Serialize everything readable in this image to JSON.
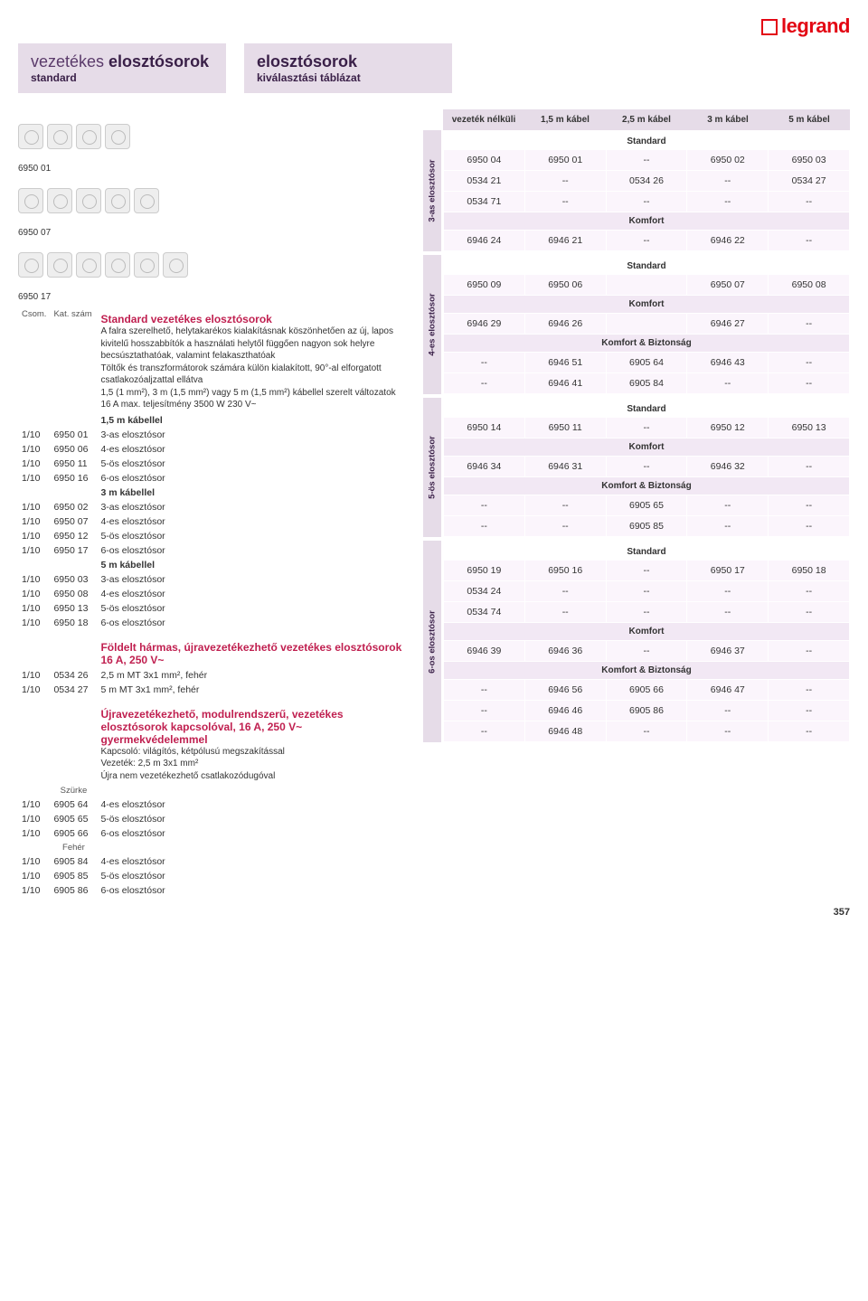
{
  "brand": "legrand",
  "header_left": {
    "line1_light": "vezetékes ",
    "line1_bold": "elosztósorok",
    "sub": "standard"
  },
  "header_right": {
    "line1_bold": "elosztósorok",
    "sub": "kiválasztási táblázat"
  },
  "left": {
    "img_captions": [
      "6950 01",
      "6950 07",
      "6950 17"
    ],
    "col_headers": {
      "csom": "Csom.",
      "kat": "Kat. szám"
    },
    "section1": {
      "title": "Standard vezetékes elosztósorok",
      "desc": "A falra szerelhető, helytakarékos kialakításnak köszönhetően az új, lapos kivitelű hosszabbítók a használati helytől függően nagyon sok helyre becsúsztathatóak, valamint felakaszthatóak\nTöltők és transzformátorok számára külön kialakított, 90°-al elforgatott csatlakozóaljzattal ellátva\n1,5 (1 mm²), 3 m (1,5 mm²) vagy 5 m (1,5 mm²) kábellel szerelt változatok\n16 A max. teljesítmény 3500 W 230 V~"
    },
    "groups": [
      {
        "head": "1,5 m kábellel",
        "rows": [
          {
            "csom": "1/10",
            "kat": "6950 01",
            "d": "3-as elosztósor"
          },
          {
            "csom": "1/10",
            "kat": "6950 06",
            "d": "4-es elosztósor"
          },
          {
            "csom": "1/10",
            "kat": "6950 11",
            "d": "5-ös elosztósor"
          },
          {
            "csom": "1/10",
            "kat": "6950 16",
            "d": "6-os elosztósor"
          }
        ]
      },
      {
        "head": "3 m kábellel",
        "rows": [
          {
            "csom": "1/10",
            "kat": "6950 02",
            "d": "3-as elosztósor"
          },
          {
            "csom": "1/10",
            "kat": "6950 07",
            "d": "4-es elosztósor"
          },
          {
            "csom": "1/10",
            "kat": "6950 12",
            "d": "5-ös elosztósor"
          },
          {
            "csom": "1/10",
            "kat": "6950 17",
            "d": "6-os elosztósor"
          }
        ]
      },
      {
        "head": "5 m kábellel",
        "rows": [
          {
            "csom": "1/10",
            "kat": "6950 03",
            "d": "3-as elosztósor"
          },
          {
            "csom": "1/10",
            "kat": "6950 08",
            "d": "4-es elosztósor"
          },
          {
            "csom": "1/10",
            "kat": "6950 13",
            "d": "5-ös elosztósor"
          },
          {
            "csom": "1/10",
            "kat": "6950 18",
            "d": "6-os elosztósor"
          }
        ]
      }
    ],
    "section2": {
      "title": "Földelt hármas, újravezetékezhető vezetékes elosztósorok 16 A, 250 V~",
      "rows": [
        {
          "csom": "1/10",
          "kat": "0534 26",
          "d": "2,5 m MT 3x1 mm², fehér"
        },
        {
          "csom": "1/10",
          "kat": "0534 27",
          "d": "5 m MT 3x1 mm², fehér"
        }
      ]
    },
    "section3": {
      "title": "Újravezetékezhető, modulrendszerű, vezetékes elosztósorok kapcsolóval, 16 A, 250 V~ gyermekvédelemmel",
      "desc": "Kapcsoló: világítós, kétpólusú megszakítással\nVezeték: 2,5 m 3x1 mm²\nÚjra nem vezetékezhető csatlakozódugóval",
      "sub1_label": "Szürke",
      "sub1_rows": [
        {
          "csom": "1/10",
          "kat": "6905 64",
          "d": "4-es elosztósor"
        },
        {
          "csom": "1/10",
          "kat": "6905 65",
          "d": "5-ös elosztósor"
        },
        {
          "csom": "1/10",
          "kat": "6905 66",
          "d": "6-os elosztósor"
        }
      ],
      "sub2_label": "Fehér",
      "sub2_rows": [
        {
          "csom": "1/10",
          "kat": "6905 84",
          "d": "4-es elosztósor"
        },
        {
          "csom": "1/10",
          "kat": "6905 85",
          "d": "5-ös elosztósor"
        },
        {
          "csom": "1/10",
          "kat": "6905 86",
          "d": "6-os elosztósor"
        }
      ]
    }
  },
  "right": {
    "columns": [
      "vezeték nélküli",
      "1,5 m kábel",
      "2,5 m kábel",
      "3 m kábel",
      "5 m kábel"
    ],
    "groups": [
      {
        "tab": "3-as elosztósor",
        "sections": [
          {
            "cat": "Standard",
            "plain": true,
            "rows": [
              [
                "6950 04",
                "6950 01",
                "--",
                "6950 02",
                "6950 03"
              ],
              [
                "0534 21",
                "--",
                "0534 26",
                "--",
                "0534 27"
              ],
              [
                "0534 71",
                "--",
                "--",
                "--",
                "--"
              ]
            ]
          },
          {
            "cat": "Komfort",
            "rows": [
              [
                "6946 24",
                "6946 21",
                "--",
                "6946 22",
                "--"
              ]
            ]
          }
        ]
      },
      {
        "tab": "4-es elosztósor",
        "sections": [
          {
            "cat": "Standard",
            "plain": true,
            "rows": [
              [
                "6950 09",
                "6950 06",
                "",
                "6950 07",
                "6950 08"
              ]
            ]
          },
          {
            "cat": "Komfort",
            "rows": [
              [
                "6946 29",
                "6946 26",
                "",
                "6946 27",
                "--"
              ]
            ]
          },
          {
            "cat": "Komfort & Biztonság",
            "rows": [
              [
                "--",
                "6946 51",
                "6905 64",
                "6946 43",
                "--"
              ],
              [
                "--",
                "6946 41",
                "6905 84",
                "--",
                "--"
              ]
            ]
          }
        ]
      },
      {
        "tab": "5-ös elosztósor",
        "sections": [
          {
            "cat": "Standard",
            "plain": true,
            "rows": [
              [
                "6950 14",
                "6950 11",
                "--",
                "6950 12",
                "6950 13"
              ]
            ]
          },
          {
            "cat": "Komfort",
            "rows": [
              [
                "6946 34",
                "6946 31",
                "--",
                "6946 32",
                "--"
              ]
            ]
          },
          {
            "cat": "Komfort & Biztonság",
            "rows": [
              [
                "--",
                "--",
                "6905 65",
                "--",
                "--"
              ],
              [
                "--",
                "--",
                "6905 85",
                "--",
                "--"
              ]
            ]
          }
        ]
      },
      {
        "tab": "6-os elosztósor",
        "sections": [
          {
            "cat": "Standard",
            "plain": true,
            "rows": [
              [
                "6950 19",
                "6950 16",
                "--",
                "6950 17",
                "6950 18"
              ],
              [
                "0534 24",
                "--",
                "--",
                "--",
                "--"
              ],
              [
                "0534 74",
                "--",
                "--",
                "--",
                "--"
              ]
            ]
          },
          {
            "cat": "Komfort",
            "rows": [
              [
                "6946 39",
                "6946 36",
                "--",
                "6946 37",
                "--"
              ]
            ]
          },
          {
            "cat": "Komfort & Biztonság",
            "rows": [
              [
                "--",
                "6946 56",
                "6905 66",
                "6946 47",
                "--"
              ],
              [
                "--",
                "6946 46",
                "6905 86",
                "--",
                "--"
              ],
              [
                "--",
                "6946 48",
                "--",
                "--",
                "--"
              ]
            ]
          }
        ]
      }
    ]
  },
  "page_number": "357",
  "styling": {
    "accent": "#c02050",
    "lavender_bg": "#e6dce8",
    "cell_bg": "#fbf5fc",
    "cat_bg": "#f2e8f4",
    "logo_red": "#e30613"
  }
}
